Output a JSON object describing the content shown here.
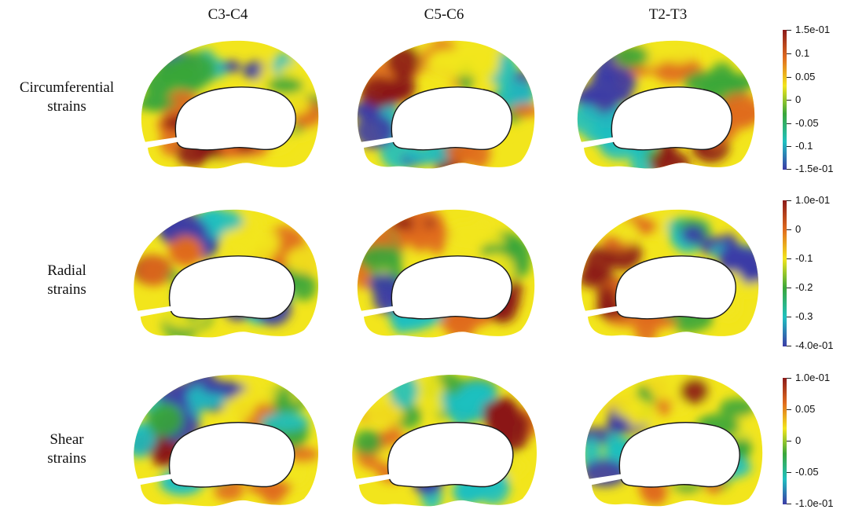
{
  "columns": [
    "C3-C4",
    "C5-C6",
    "T2-T3"
  ],
  "rows": [
    {
      "line1": "Circumferential",
      "line2": "strains"
    },
    {
      "line1": "Radial",
      "line2": "strains"
    },
    {
      "line1": "Shear",
      "line2": "strains"
    }
  ],
  "colorbars": [
    {
      "ticks": [
        "1.5e-01",
        "0.1",
        "0.05",
        "0",
        "-0.05",
        "-0.1",
        "-1.5e-01"
      ]
    },
    {
      "ticks": [
        "1.0e-01",
        "0",
        "-0.1",
        "-0.2",
        "-0.3",
        "-4.0e-01"
      ]
    },
    {
      "ticks": [
        "1.0e-01",
        "0.05",
        "0",
        "-0.05",
        "-1.0e-01"
      ]
    }
  ],
  "colormap": [
    "#3b3ba6",
    "#1fc0c0",
    "#3aa63a",
    "#f2e51c",
    "#e06b1e",
    "#8b1a1a"
  ]
}
